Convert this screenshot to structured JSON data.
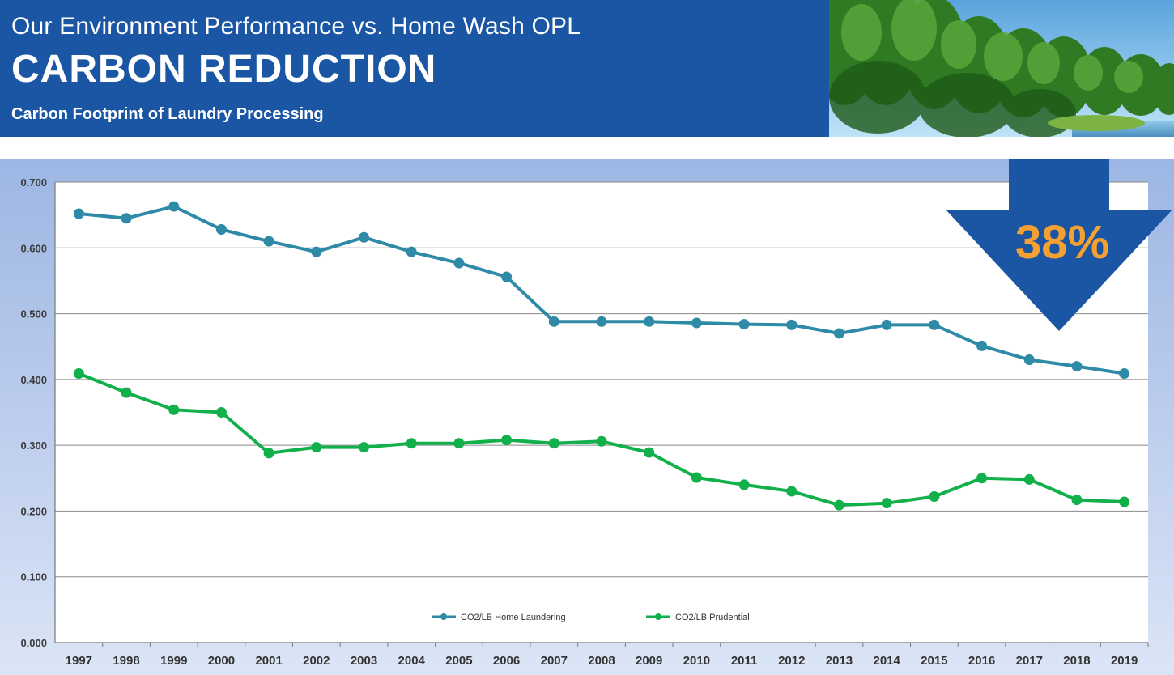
{
  "header": {
    "subtitle": "Our Environment Performance vs. Home Wash OPL",
    "title": "CARBON REDUCTION",
    "caption": "Carbon Footprint of Laundry Processing"
  },
  "photo": {
    "alt": "forest landscape photo"
  },
  "callout": {
    "value": "38%"
  },
  "colors": {
    "header_bg": "#1a56a3",
    "series_home": "#2e8aa6",
    "series_prudential": "#12b04a",
    "arrow": "#1a56a3",
    "callout_text": "#f5a033"
  },
  "chart_data": {
    "type": "line",
    "title": "Carbon Footprint of Laundry Processing",
    "xlabel": "",
    "ylabel": "",
    "categories": [
      "1997",
      "1998",
      "1999",
      "2000",
      "2001",
      "2002",
      "2003",
      "2004",
      "2005",
      "2006",
      "2007",
      "2008",
      "2009",
      "2010",
      "2011",
      "2012",
      "2013",
      "2014",
      "2015",
      "2016",
      "2017",
      "2018",
      "2019"
    ],
    "ylim": [
      0,
      0.7
    ],
    "yticks": [
      "0.000",
      "0.100",
      "0.200",
      "0.300",
      "0.400",
      "0.500",
      "0.600",
      "0.700"
    ],
    "grid": true,
    "legend_position": "bottom",
    "series": [
      {
        "name": "CO2/LB Home Laundering",
        "values": [
          0.652,
          0.645,
          0.663,
          0.628,
          0.61,
          0.594,
          0.616,
          0.594,
          0.577,
          0.556,
          0.488,
          0.488,
          0.488,
          0.486,
          0.484,
          0.483,
          0.47,
          0.483,
          0.483,
          0.451,
          0.43,
          0.42,
          0.409
        ]
      },
      {
        "name": "CO2/LB Prudential",
        "values": [
          0.409,
          0.38,
          0.354,
          0.35,
          0.288,
          0.297,
          0.297,
          0.303,
          0.303,
          0.308,
          0.303,
          0.306,
          0.289,
          0.251,
          0.24,
          0.23,
          0.209,
          0.212,
          0.222,
          0.25,
          0.248,
          0.217,
          0.214
        ]
      }
    ]
  }
}
